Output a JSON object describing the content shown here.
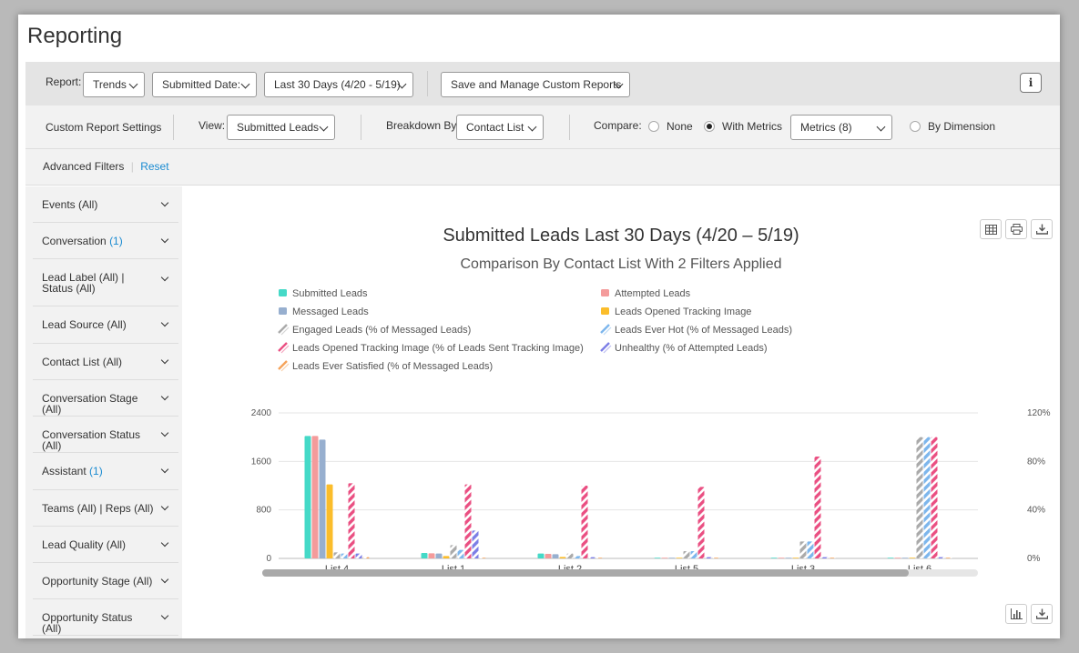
{
  "page": {
    "title": "Reporting"
  },
  "toolbar": {
    "report_label": "Report:",
    "report_type": "Trends",
    "date_field": "Submitted Date:",
    "date_range": "Last 30 Days (4/20 - 5/19)",
    "custom_reports": "Save and Manage Custom Reports",
    "info": "i"
  },
  "settings": {
    "title": "Custom Report Settings",
    "view_label": "View:",
    "view_value": "Submitted Leads",
    "breakdown_label": "Breakdown By:",
    "breakdown_value": "Contact List",
    "compare_label": "Compare:",
    "opt_none": "None",
    "opt_with_metrics": "With Metrics",
    "metrics_value": "Metrics (8)",
    "opt_by_dimension": "By Dimension",
    "selected_compare": "With Metrics"
  },
  "filters": {
    "title": "Advanced Filters",
    "reset": "Reset",
    "items": [
      {
        "label": "Events (All)",
        "count": ""
      },
      {
        "label": "Conversation",
        "count": "(1)"
      },
      {
        "label": "Lead Label (All) | Status (All)",
        "count": ""
      },
      {
        "label": "Lead Source (All)",
        "count": ""
      },
      {
        "label": "Contact List (All)",
        "count": ""
      },
      {
        "label": "Conversation Stage (All)",
        "count": ""
      },
      {
        "label": "Conversation Status (All)",
        "count": ""
      },
      {
        "label": "Assistant",
        "count": "(1)"
      },
      {
        "label": "Teams (All) | Reps (All)",
        "count": ""
      },
      {
        "label": "Lead Quality (All)",
        "count": ""
      },
      {
        "label": "Opportunity Stage (All)",
        "count": ""
      },
      {
        "label": "Opportunity Status (All)",
        "count": ""
      }
    ]
  },
  "icons": [
    "table-icon",
    "print-icon",
    "download-icon",
    "bar-chart-icon"
  ],
  "chart_data": {
    "type": "bar",
    "title": "Submitted Leads Last 30 Days (4/20 – 5/19)",
    "subtitle": "Comparison By Contact List With 2 Filters Applied",
    "categories": [
      "List 4",
      "List 1",
      "List 2",
      "List 5",
      "List 3",
      "List 6"
    ],
    "y_left": {
      "ticks": [
        "0",
        "800",
        "1600",
        "2400"
      ],
      "ylim": [
        0,
        2400
      ]
    },
    "y_right": {
      "ticks": [
        "0%",
        "40%",
        "80%",
        "120%"
      ],
      "ylim": [
        0,
        120
      ]
    },
    "grid": true,
    "legend_position": "top",
    "series": [
      {
        "name": "Submitted Leads",
        "axis": "left",
        "color": "#45d9c7",
        "pattern": "solid",
        "values": [
          2020,
          90,
          80,
          10,
          10,
          10
        ]
      },
      {
        "name": "Attempted Leads",
        "axis": "left",
        "color": "#f49b9b",
        "pattern": "solid",
        "values": [
          2020,
          85,
          75,
          10,
          10,
          10
        ]
      },
      {
        "name": "Messaged Leads",
        "axis": "left",
        "color": "#97afcf",
        "pattern": "solid",
        "values": [
          1960,
          80,
          70,
          10,
          10,
          10
        ]
      },
      {
        "name": "Leads Opened Tracking Image",
        "axis": "left",
        "color": "#fbbd2b",
        "pattern": "solid",
        "values": [
          1220,
          40,
          25,
          5,
          5,
          5
        ]
      },
      {
        "name": "Engaged Leads (% of Messaged Leads)",
        "axis": "right",
        "color": "#aaaaaa",
        "pattern": "hatch",
        "values": [
          5,
          11,
          4,
          6,
          14,
          100
        ]
      },
      {
        "name": "Leads Ever Hot (% of Messaged Leads)",
        "axis": "right",
        "color": "#7db6ec",
        "pattern": "hatch",
        "values": [
          4,
          7,
          2,
          6,
          14,
          100
        ]
      },
      {
        "name": "Leads Opened Tracking Image (% of Leads Sent Tracking Image)",
        "axis": "right",
        "color": "#ea4f82",
        "pattern": "hatch",
        "values": [
          62,
          61,
          60,
          59,
          84,
          100
        ]
      },
      {
        "name": "Unhealthy (% of Attempted Leads)",
        "axis": "right",
        "color": "#7c7ee6",
        "pattern": "hatch",
        "values": [
          4,
          23,
          1,
          1,
          1,
          1
        ]
      },
      {
        "name": "Leads Ever Satisfied (% of Messaged Leads)",
        "axis": "right",
        "color": "#f5a35a",
        "pattern": "hatch",
        "values": [
          1,
          0,
          0,
          0,
          0,
          0
        ]
      }
    ]
  }
}
